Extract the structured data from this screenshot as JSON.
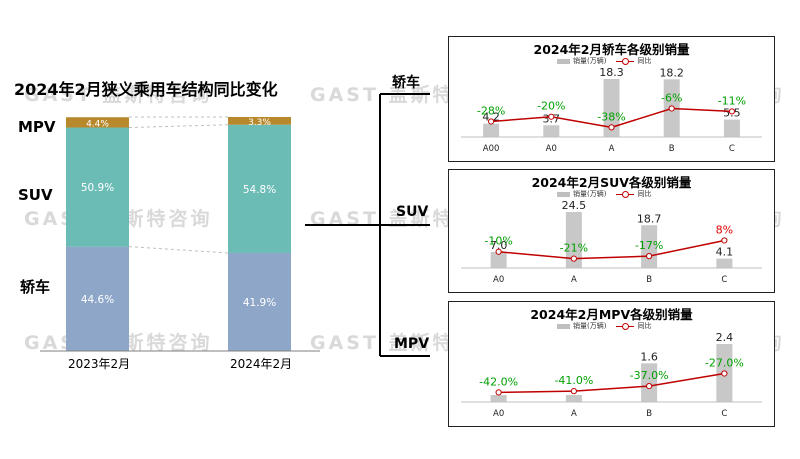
{
  "watermark": "GAST 盖斯特咨询",
  "connectors": {
    "sedan": "轿车",
    "suv": "SUV",
    "mpv": "MPV"
  },
  "chart_data": [
    {
      "type": "bar",
      "stacked": true,
      "title": "2024年2月狭义乘用车结构同比变化",
      "categories": [
        "2023年2月",
        "2024年2月"
      ],
      "series": [
        {
          "name": "轿车",
          "values": [
            44.6,
            41.9
          ],
          "labels": [
            "44.6%",
            "41.9%"
          ],
          "color": "#8ea7c9"
        },
        {
          "name": "SUV",
          "values": [
            50.9,
            54.8
          ],
          "labels": [
            "50.9%",
            "54.8%"
          ],
          "color": "#6cbcb6"
        },
        {
          "name": "MPV",
          "values": [
            4.4,
            3.3
          ],
          "labels": [
            "4.4%",
            "3.3%"
          ],
          "color": "#b8892c"
        }
      ],
      "ylim": [
        0,
        100
      ]
    },
    {
      "type": "bar+line",
      "title": "2024年2月轿车各级别销量",
      "legend": [
        "销量(万辆)",
        "同比"
      ],
      "categories": [
        "A00",
        "A0",
        "A",
        "B",
        "C"
      ],
      "values": [
        4.2,
        3.7,
        18.3,
        18.2,
        5.5
      ],
      "value_labels": [
        "4.2",
        "3.7",
        "18.3",
        "18.2",
        "5.5"
      ],
      "yoy": [
        -28,
        -20,
        -38,
        -6,
        -11
      ],
      "yoy_labels": [
        "-28%",
        "-20%",
        "-38%",
        "-6%",
        "-11%"
      ],
      "yoy_colors": [
        "#00a000",
        "#00a000",
        "#00a000",
        "#00a000",
        "#00a000"
      ],
      "ylim": [
        0,
        18.3
      ]
    },
    {
      "type": "bar+line",
      "title": "2024年2月SUV各级别销量",
      "legend": [
        "销量(万辆)",
        "同比"
      ],
      "categories": [
        "A0",
        "A",
        "B",
        "C"
      ],
      "values": [
        7.0,
        24.5,
        18.7,
        4.1
      ],
      "value_labels": [
        "7.0",
        "24.5",
        "18.7",
        "4.1"
      ],
      "yoy": [
        -10,
        -21,
        -17,
        8
      ],
      "yoy_labels": [
        "-10%",
        "-21%",
        "-17%",
        "8%"
      ],
      "yoy_colors": [
        "#00a000",
        "#00a000",
        "#00a000",
        "#e00000"
      ],
      "ylim": [
        0,
        24.5
      ]
    },
    {
      "type": "bar+line",
      "title": "2024年2月MPV各级别销量",
      "legend": [
        "销量(万辆)",
        "同比"
      ],
      "categories": [
        "A0",
        "A",
        "B",
        "C"
      ],
      "values": [
        0.2,
        0.2,
        1.6,
        2.4
      ],
      "value_labels": [
        "",
        "",
        "1.6",
        "2.4"
      ],
      "yoy": [
        -42.0,
        -41.0,
        -37.0,
        -27.0
      ],
      "yoy_labels": [
        "-42.0%",
        "-41.0%",
        "-37.0%",
        "-27.0%"
      ],
      "yoy_colors": [
        "#00a000",
        "#00a000",
        "#00a000",
        "#00a000"
      ],
      "ylim": [
        0,
        2.4
      ]
    }
  ]
}
